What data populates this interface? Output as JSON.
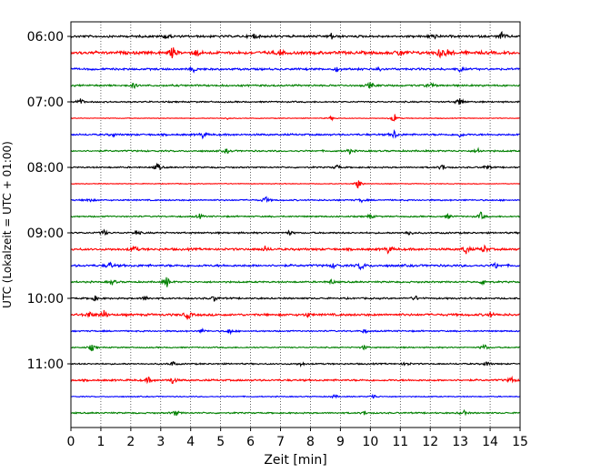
{
  "chart_data": {
    "type": "line",
    "title": "",
    "xlabel": "Zeit  [min]",
    "ylabel": "UTC (Lokalzeit = UTC + 01:00)",
    "xlim": [
      0,
      15
    ],
    "x_ticks": [
      0,
      1,
      2,
      3,
      4,
      5,
      6,
      7,
      8,
      9,
      10,
      11,
      12,
      13,
      14,
      15
    ],
    "x_tick_labels": [
      "0",
      "1",
      "2",
      "3",
      "4",
      "5",
      "6",
      "7",
      "8",
      "9",
      "10",
      "11",
      "12",
      "13",
      "14",
      "15"
    ],
    "y_tick_labels": [
      "06:00",
      "07:00",
      "08:00",
      "09:00",
      "10:00",
      "11:00"
    ],
    "grid": "vertical dotted",
    "trace_colors": [
      "#000000",
      "#ff0000",
      "#0000ff",
      "#008000"
    ],
    "traces": [
      {
        "time": "06:00",
        "color": "#000000",
        "amplitude": 0.55,
        "spikes": [
          [
            3.2,
            0.6
          ],
          [
            6.1,
            0.5
          ],
          [
            8.7,
            0.5
          ],
          [
            12.1,
            0.55
          ],
          [
            14.4,
            0.7
          ]
        ]
      },
      {
        "time": "06:15",
        "color": "#ff0000",
        "amplitude": 0.75,
        "spikes": [
          [
            3.4,
            1.0
          ],
          [
            4.2,
            0.6
          ],
          [
            7.0,
            0.5
          ],
          [
            11.0,
            0.6
          ],
          [
            12.3,
            0.8
          ],
          [
            12.6,
            0.7
          ]
        ]
      },
      {
        "time": "06:30",
        "color": "#0000ff",
        "amplitude": 0.5,
        "spikes": [
          [
            4.1,
            0.4
          ],
          [
            8.9,
            0.4
          ],
          [
            10.3,
            0.5
          ],
          [
            13.0,
            0.4
          ]
        ]
      },
      {
        "time": "06:45",
        "color": "#008000",
        "amplitude": 0.45,
        "spikes": [
          [
            2.1,
            0.4
          ],
          [
            10.0,
            0.55
          ],
          [
            12.0,
            0.45
          ]
        ]
      },
      {
        "time": "07:00",
        "color": "#000000",
        "amplitude": 0.35,
        "spikes": [
          [
            0.3,
            0.7
          ],
          [
            13.0,
            0.8
          ]
        ]
      },
      {
        "time": "07:15",
        "color": "#ff0000",
        "amplitude": 0.18,
        "spikes": [
          [
            10.8,
            0.8
          ],
          [
            8.7,
            0.3
          ],
          [
            5.2,
            0.2
          ]
        ]
      },
      {
        "time": "07:30",
        "color": "#0000ff",
        "amplitude": 0.45,
        "spikes": [
          [
            1.4,
            0.3
          ],
          [
            4.4,
            0.5
          ],
          [
            10.8,
            0.7
          ],
          [
            13.0,
            0.4
          ]
        ]
      },
      {
        "time": "07:45",
        "color": "#008000",
        "amplitude": 0.4,
        "spikes": [
          [
            5.2,
            0.4
          ],
          [
            9.3,
            0.4
          ],
          [
            13.6,
            0.4
          ]
        ]
      },
      {
        "time": "08:00",
        "color": "#000000",
        "amplitude": 0.35,
        "spikes": [
          [
            2.9,
            0.7
          ],
          [
            8.9,
            0.4
          ],
          [
            12.4,
            0.6
          ],
          [
            13.9,
            0.5
          ]
        ]
      },
      {
        "time": "08:15",
        "color": "#ff0000",
        "amplitude": 0.18,
        "spikes": [
          [
            9.6,
            0.9
          ]
        ]
      },
      {
        "time": "08:30",
        "color": "#0000ff",
        "amplitude": 0.35,
        "spikes": [
          [
            0.6,
            0.4
          ],
          [
            6.5,
            0.6
          ],
          [
            9.7,
            0.3
          ]
        ]
      },
      {
        "time": "08:45",
        "color": "#008000",
        "amplitude": 0.35,
        "spikes": [
          [
            4.3,
            0.4
          ],
          [
            10.0,
            0.4
          ],
          [
            12.6,
            0.4
          ],
          [
            13.7,
            0.7
          ]
        ]
      },
      {
        "time": "09:00",
        "color": "#000000",
        "amplitude": 0.4,
        "spikes": [
          [
            1.1,
            0.5
          ],
          [
            2.2,
            0.45
          ],
          [
            7.3,
            0.4
          ],
          [
            11.3,
            0.45
          ]
        ]
      },
      {
        "time": "09:15",
        "color": "#ff0000",
        "amplitude": 0.55,
        "spikes": [
          [
            2.1,
            0.6
          ],
          [
            6.5,
            0.5
          ],
          [
            10.6,
            0.7
          ],
          [
            13.2,
            0.85
          ],
          [
            13.8,
            0.7
          ]
        ]
      },
      {
        "time": "09:30",
        "color": "#0000ff",
        "amplitude": 0.55,
        "spikes": [
          [
            1.3,
            0.6
          ],
          [
            8.8,
            0.5
          ],
          [
            9.7,
            0.8
          ],
          [
            14.2,
            0.5
          ]
        ]
      },
      {
        "time": "09:45",
        "color": "#008000",
        "amplitude": 0.4,
        "spikes": [
          [
            1.4,
            0.5
          ],
          [
            3.2,
            0.9
          ],
          [
            8.7,
            0.4
          ],
          [
            13.8,
            0.6
          ]
        ]
      },
      {
        "time": "10:00",
        "color": "#000000",
        "amplitude": 0.4,
        "spikes": [
          [
            0.8,
            0.4
          ],
          [
            2.5,
            0.45
          ],
          [
            4.8,
            0.5
          ],
          [
            11.5,
            0.4
          ]
        ]
      },
      {
        "time": "10:15",
        "color": "#ff0000",
        "amplitude": 0.55,
        "spikes": [
          [
            0.6,
            0.6
          ],
          [
            1.1,
            0.8
          ],
          [
            3.9,
            0.8
          ],
          [
            7.9,
            0.4
          ],
          [
            14.0,
            0.4
          ]
        ]
      },
      {
        "time": "10:30",
        "color": "#0000ff",
        "amplitude": 0.35,
        "spikes": [
          [
            4.4,
            0.35
          ],
          [
            5.3,
            0.5
          ],
          [
            9.8,
            0.35
          ]
        ]
      },
      {
        "time": "10:45",
        "color": "#008000",
        "amplitude": 0.3,
        "spikes": [
          [
            0.7,
            0.6
          ],
          [
            9.8,
            0.4
          ],
          [
            13.8,
            0.6
          ]
        ]
      },
      {
        "time": "11:00",
        "color": "#000000",
        "amplitude": 0.35,
        "spikes": [
          [
            3.4,
            0.4
          ],
          [
            7.7,
            0.35
          ],
          [
            11.2,
            0.4
          ],
          [
            13.9,
            0.45
          ]
        ]
      },
      {
        "time": "11:15",
        "color": "#ff0000",
        "amplitude": 0.45,
        "spikes": [
          [
            2.6,
            0.5
          ],
          [
            3.4,
            0.6
          ],
          [
            14.7,
            0.6
          ]
        ]
      },
      {
        "time": "11:30",
        "color": "#0000ff",
        "amplitude": 0.25,
        "spikes": [
          [
            10.1,
            0.45
          ],
          [
            8.8,
            0.3
          ]
        ]
      },
      {
        "time": "11:45",
        "color": "#008000",
        "amplitude": 0.35,
        "spikes": [
          [
            3.5,
            0.55
          ],
          [
            9.8,
            0.35
          ],
          [
            13.1,
            0.5
          ]
        ]
      }
    ]
  }
}
